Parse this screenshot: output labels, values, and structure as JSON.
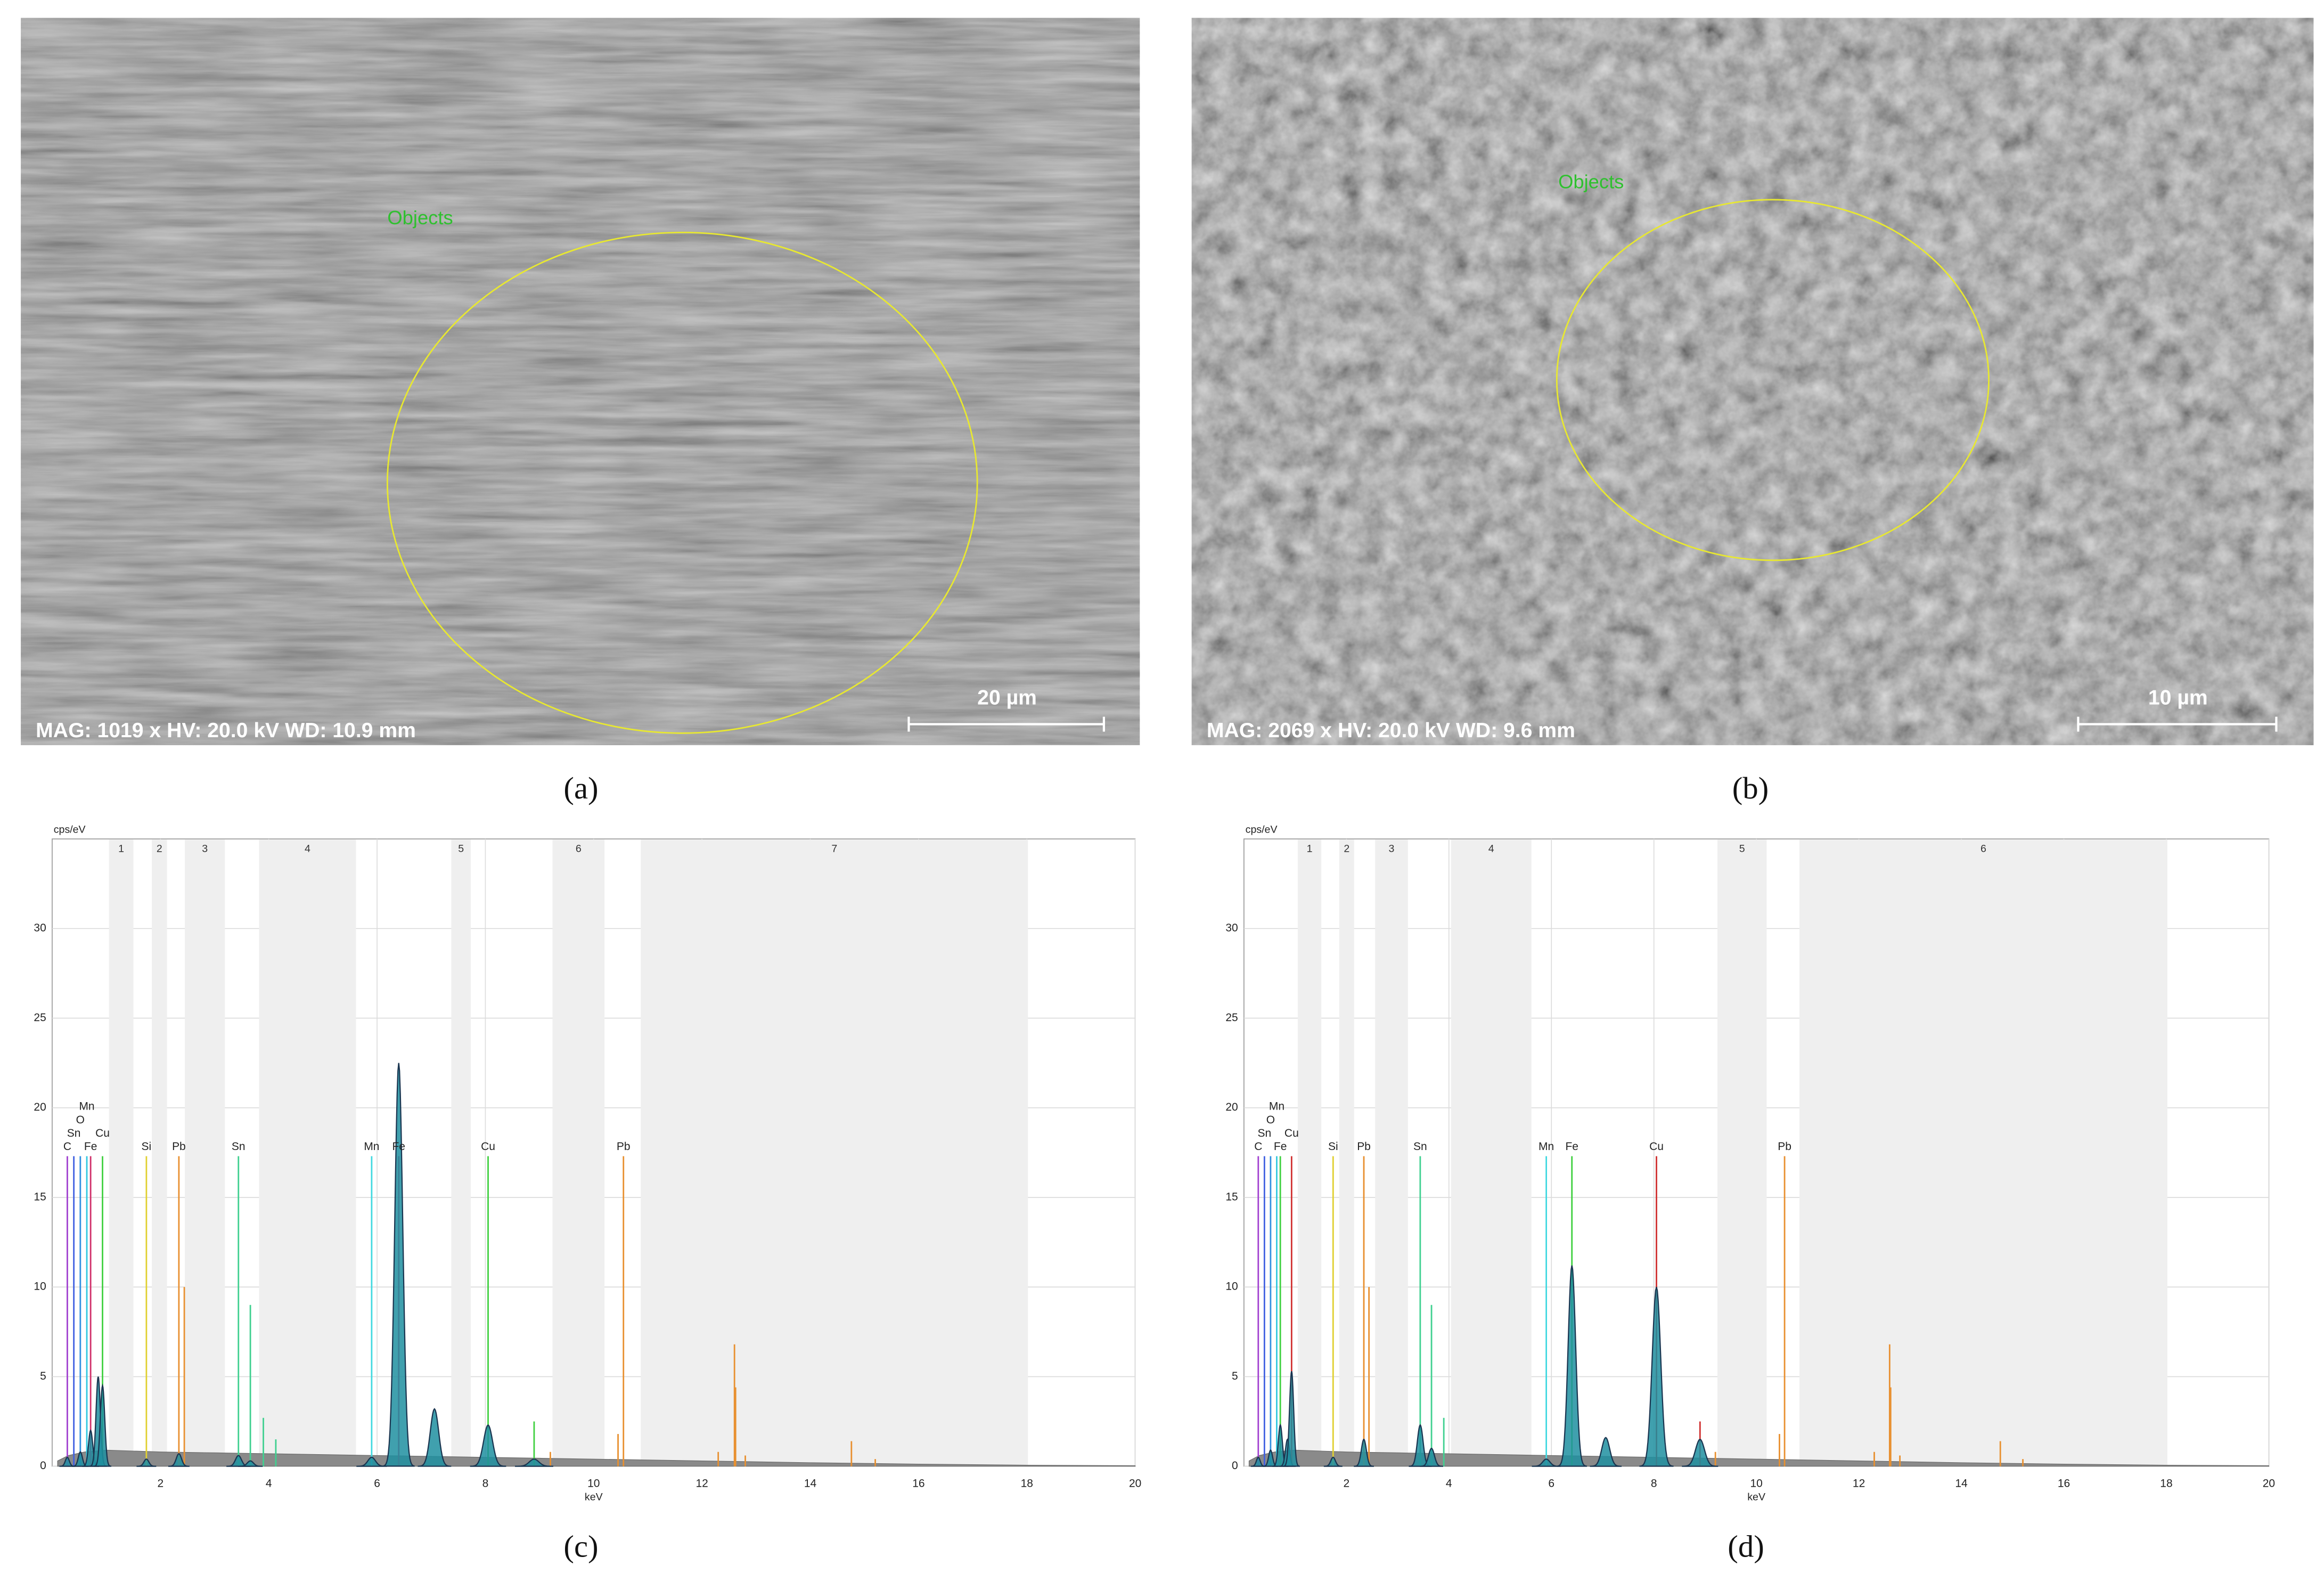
{
  "panels": [
    {
      "label": "(a)",
      "annotation": "Objects",
      "info": "MAG: 1019 x  HV: 20.0 kV  WD: 10.9 mm",
      "scale_bar": "20 µm"
    },
    {
      "label": "(b)",
      "annotation": "Objects",
      "info": "MAG: 2069 x  HV: 20.0 kV  WD: 9.6 mm",
      "scale_bar": "10 µm"
    }
  ],
  "chart_data": [
    {
      "type": "spectrum",
      "label": "(c)",
      "xlabel": "keV",
      "ylabel": "cps/eV",
      "xlim": [
        0,
        20
      ],
      "ylim": [
        0,
        35
      ],
      "xticks": [
        2,
        4,
        6,
        8,
        10,
        12,
        14,
        16,
        18,
        20
      ],
      "yticks": [
        0,
        5,
        10,
        15,
        20,
        25,
        30
      ],
      "grid": true,
      "peak_color": "#1f8fa0",
      "background_color": "#8a8a8a",
      "regions": [
        {
          "label": "1",
          "range": [
            1.05,
            1.5
          ]
        },
        {
          "label": "2",
          "range": [
            1.84,
            2.12
          ]
        },
        {
          "label": "3",
          "range": [
            2.45,
            3.19
          ]
        },
        {
          "label": "4",
          "range": [
            3.82,
            5.61
          ]
        },
        {
          "label": "5",
          "range": [
            7.37,
            7.73
          ]
        },
        {
          "label": "6",
          "range": [
            9.24,
            10.2
          ]
        },
        {
          "label": "7",
          "range": [
            10.87,
            18.02
          ]
        }
      ],
      "background": {
        "x": [
          0.1,
          0.3,
          0.6,
          1,
          1.5,
          2,
          3,
          4,
          5,
          6,
          7,
          8,
          9,
          10,
          12,
          14,
          16,
          18,
          20
        ],
        "values": [
          0.3,
          0.6,
          0.8,
          0.9,
          0.85,
          0.8,
          0.75,
          0.7,
          0.65,
          0.6,
          0.55,
          0.5,
          0.45,
          0.4,
          0.3,
          0.2,
          0.12,
          0.06,
          0.03
        ]
      },
      "peaks": [
        {
          "x": 0.28,
          "height": 0.5
        },
        {
          "x": 0.52,
          "height": 0.8
        },
        {
          "x": 0.71,
          "height": 2.0
        },
        {
          "x": 0.85,
          "height": 5.0
        },
        {
          "x": 0.93,
          "height": 4.5
        },
        {
          "x": 1.74,
          "height": 0.4
        },
        {
          "x": 2.34,
          "height": 0.7
        },
        {
          "x": 3.44,
          "height": 0.6
        },
        {
          "x": 3.66,
          "height": 0.3
        },
        {
          "x": 5.9,
          "height": 0.5
        },
        {
          "x": 6.4,
          "height": 22.5
        },
        {
          "x": 7.06,
          "height": 3.2
        },
        {
          "x": 8.05,
          "height": 2.3
        },
        {
          "x": 8.9,
          "height": 0.4
        }
      ],
      "element_lines": [
        {
          "label": "C",
          "x": 0.28,
          "height": 17.3,
          "color": "#a040d0"
        },
        {
          "label": "Sn",
          "x": 0.4,
          "height": 17.3,
          "color": "#4060e0"
        },
        {
          "label": "O",
          "x": 0.52,
          "height": 17.3,
          "color": "#3090e0"
        },
        {
          "label": "Mn",
          "x": 0.64,
          "height": 17.3,
          "color": "#30c8e0"
        },
        {
          "label": "Fe",
          "x": 0.71,
          "height": 17.3,
          "color": "#d0306a"
        },
        {
          "label": "Cu",
          "x": 0.93,
          "height": 17.3,
          "color": "#40d040"
        },
        {
          "label": "Si",
          "x": 1.74,
          "height": 17.3,
          "color": "#e0d030"
        },
        {
          "label": "Pb",
          "x": 2.34,
          "height": 17.3,
          "color": "#e89030"
        },
        {
          "label": "Sn",
          "x": 3.44,
          "height": 17.3,
          "color": "#40d090"
        },
        {
          "label": "Mn",
          "x": 5.9,
          "height": 17.3,
          "color": "#40d8e0"
        },
        {
          "label": "Fe",
          "x": 6.4,
          "height": 17.3,
          "color": "#d0306a"
        },
        {
          "label": "Cu",
          "x": 8.05,
          "height": 17.3,
          "color": "#40d040"
        },
        {
          "label": "Pb",
          "x": 10.55,
          "height": 17.3,
          "color": "#e89030"
        }
      ],
      "reference_lines": [
        {
          "x": 2.44,
          "height": 10,
          "color": "#e89030"
        },
        {
          "x": 3.66,
          "height": 9,
          "color": "#40d090"
        },
        {
          "x": 3.9,
          "height": 2.7,
          "color": "#40d090"
        },
        {
          "x": 4.13,
          "height": 1.5,
          "color": "#40d090"
        },
        {
          "x": 8.9,
          "height": 2.5,
          "color": "#40d040"
        },
        {
          "x": 9.2,
          "height": 0.8,
          "color": "#e89030"
        },
        {
          "x": 10.45,
          "height": 1.8,
          "color": "#e89030"
        },
        {
          "x": 12.3,
          "height": 0.8,
          "color": "#e89030"
        },
        {
          "x": 12.6,
          "height": 6.8,
          "color": "#e89030"
        },
        {
          "x": 12.62,
          "height": 4.4,
          "color": "#e89030"
        },
        {
          "x": 12.8,
          "height": 0.6,
          "color": "#e89030"
        },
        {
          "x": 14.76,
          "height": 1.4,
          "color": "#e89030"
        },
        {
          "x": 15.2,
          "height": 0.4,
          "color": "#e89030"
        }
      ]
    },
    {
      "type": "spectrum",
      "label": "(d)",
      "xlabel": "keV",
      "ylabel": "cps/eV",
      "xlim": [
        0,
        20
      ],
      "ylim": [
        0,
        35
      ],
      "xticks": [
        2,
        4,
        6,
        8,
        10,
        12,
        14,
        16,
        18,
        20
      ],
      "yticks": [
        0,
        5,
        10,
        15,
        20,
        25,
        30
      ],
      "grid": true,
      "peak_color": "#1f8fa0",
      "background_color": "#8a8a8a",
      "regions": [
        {
          "label": "1",
          "range": [
            1.05,
            1.51
          ]
        },
        {
          "label": "2",
          "range": [
            1.86,
            2.15
          ]
        },
        {
          "label": "3",
          "range": [
            2.56,
            3.2
          ]
        },
        {
          "label": "4",
          "range": [
            4.04,
            5.61
          ]
        },
        {
          "label": "5",
          "range": [
            9.24,
            10.2
          ]
        },
        {
          "label": "6",
          "range": [
            10.84,
            18.02
          ]
        }
      ],
      "background": {
        "x": [
          0.1,
          0.3,
          0.6,
          1,
          1.5,
          2,
          3,
          4,
          5,
          6,
          7,
          8,
          9,
          10,
          12,
          14,
          16,
          18,
          20
        ],
        "values": [
          0.3,
          0.6,
          0.8,
          0.9,
          0.85,
          0.8,
          0.75,
          0.7,
          0.65,
          0.6,
          0.55,
          0.5,
          0.45,
          0.4,
          0.3,
          0.2,
          0.12,
          0.06,
          0.03
        ]
      },
      "peaks": [
        {
          "x": 0.28,
          "height": 0.5
        },
        {
          "x": 0.52,
          "height": 0.9
        },
        {
          "x": 0.71,
          "height": 2.3
        },
        {
          "x": 0.85,
          "height": 1.5
        },
        {
          "x": 0.93,
          "height": 5.3
        },
        {
          "x": 1.74,
          "height": 0.5
        },
        {
          "x": 2.34,
          "height": 1.5
        },
        {
          "x": 3.44,
          "height": 2.3
        },
        {
          "x": 3.66,
          "height": 1.0
        },
        {
          "x": 5.9,
          "height": 0.4
        },
        {
          "x": 6.4,
          "height": 11.2
        },
        {
          "x": 7.06,
          "height": 1.6
        },
        {
          "x": 8.05,
          "height": 10.0
        },
        {
          "x": 8.9,
          "height": 1.5
        }
      ],
      "element_lines": [
        {
          "label": "C",
          "x": 0.28,
          "height": 17.3,
          "color": "#a040d0"
        },
        {
          "label": "Sn",
          "x": 0.4,
          "height": 17.3,
          "color": "#4060e0"
        },
        {
          "label": "O",
          "x": 0.52,
          "height": 17.3,
          "color": "#3090e0"
        },
        {
          "label": "Mn",
          "x": 0.64,
          "height": 17.3,
          "color": "#30c8e0"
        },
        {
          "label": "Fe",
          "x": 0.71,
          "height": 17.3,
          "color": "#40d040"
        },
        {
          "label": "Cu",
          "x": 0.93,
          "height": 17.3,
          "color": "#d03030"
        },
        {
          "label": "Si",
          "x": 1.74,
          "height": 17.3,
          "color": "#e0d030"
        },
        {
          "label": "Pb",
          "x": 2.34,
          "height": 17.3,
          "color": "#e89030"
        },
        {
          "label": "Sn",
          "x": 3.44,
          "height": 17.3,
          "color": "#40d090"
        },
        {
          "label": "Mn",
          "x": 5.9,
          "height": 17.3,
          "color": "#40d8e0"
        },
        {
          "label": "Fe",
          "x": 6.4,
          "height": 17.3,
          "color": "#40d040"
        },
        {
          "label": "Cu",
          "x": 8.05,
          "height": 17.3,
          "color": "#d03030"
        },
        {
          "label": "Pb",
          "x": 10.55,
          "height": 17.3,
          "color": "#e89030"
        }
      ],
      "reference_lines": [
        {
          "x": 2.44,
          "height": 10,
          "color": "#e89030"
        },
        {
          "x": 3.66,
          "height": 9,
          "color": "#40d090"
        },
        {
          "x": 3.9,
          "height": 2.7,
          "color": "#40d090"
        },
        {
          "x": 8.9,
          "height": 2.5,
          "color": "#d03030"
        },
        {
          "x": 9.2,
          "height": 0.8,
          "color": "#e89030"
        },
        {
          "x": 10.45,
          "height": 1.8,
          "color": "#e89030"
        },
        {
          "x": 12.3,
          "height": 0.8,
          "color": "#e89030"
        },
        {
          "x": 12.6,
          "height": 6.8,
          "color": "#e89030"
        },
        {
          "x": 12.62,
          "height": 4.4,
          "color": "#e89030"
        },
        {
          "x": 12.8,
          "height": 0.6,
          "color": "#e89030"
        },
        {
          "x": 14.76,
          "height": 1.4,
          "color": "#e89030"
        },
        {
          "x": 15.2,
          "height": 0.4,
          "color": "#e89030"
        }
      ]
    }
  ]
}
